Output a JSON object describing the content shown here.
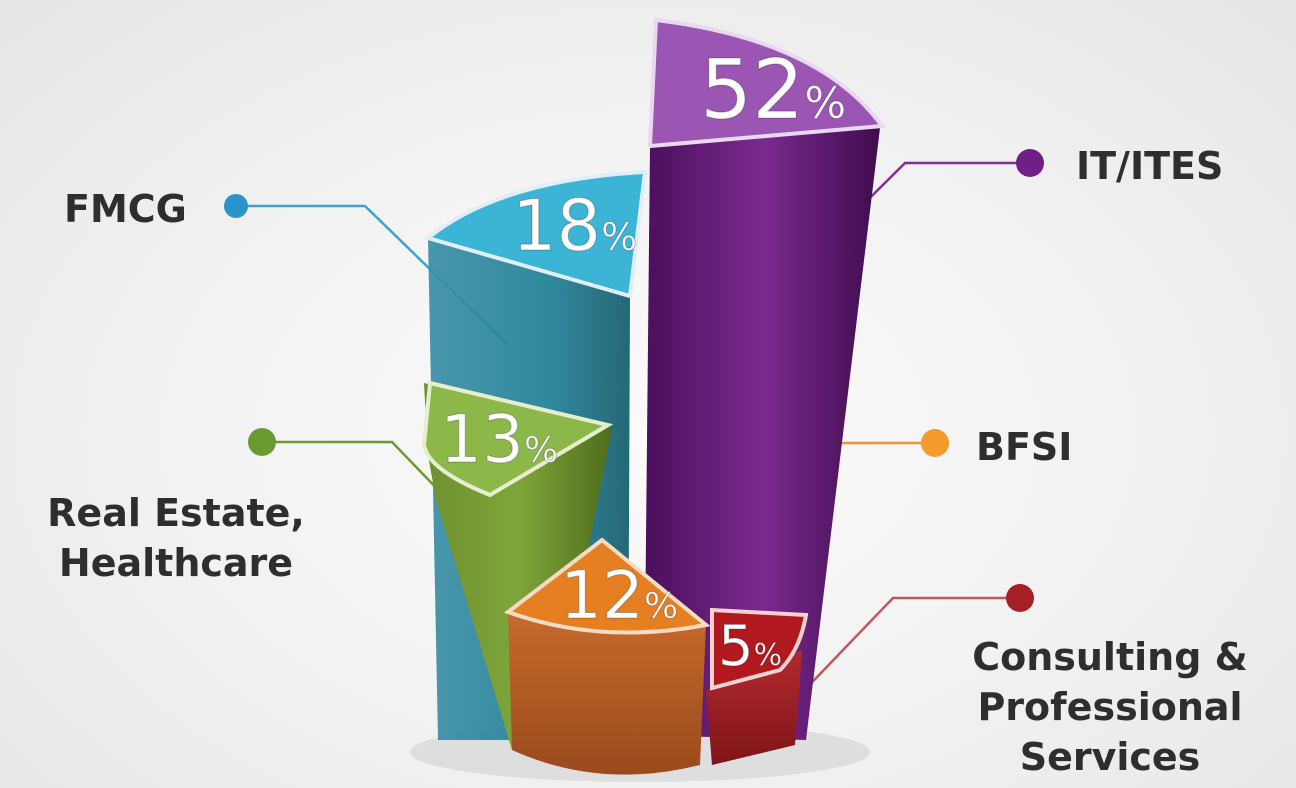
{
  "chart_data": {
    "type": "pie",
    "categories": [
      "IT/ITES",
      "FMCG",
      "Real Estate,\nHealthcare",
      "BFSI",
      "Consulting &\nProfessional\nServices"
    ],
    "values": [
      52,
      18,
      13,
      12,
      5
    ],
    "value_labels": [
      "52",
      "18",
      "13",
      "12",
      "5"
    ],
    "unit": "%",
    "colors": [
      "#6b1f7c",
      "#2aa0c8",
      "#6c9a2c",
      "#e0892a",
      "#a51f25"
    ],
    "legend_placement": "around"
  }
}
